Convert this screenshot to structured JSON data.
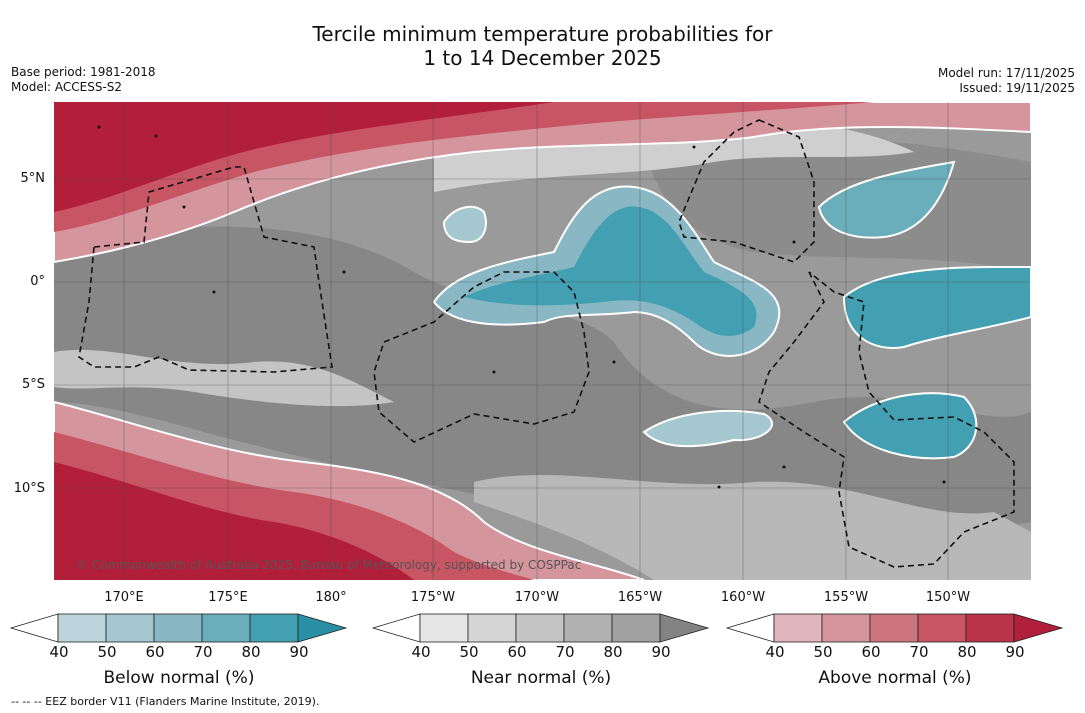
{
  "title": {
    "line1": "Tercile minimum temperature probabilities for",
    "line2": "1 to 14 December 2025"
  },
  "meta": {
    "base_period": "Base period: 1981-2018",
    "model": "Model: ACCESS-S2",
    "model_run": "Model run: 17/11/2025",
    "issued": "Issued: 19/11/2025"
  },
  "map": {
    "lat_labels": [
      "5°N",
      "0°",
      "5°S",
      "10°S"
    ],
    "lon_labels": [
      "170°E",
      "175°E",
      "180°",
      "175°W",
      "170°W",
      "165°W",
      "160°W",
      "155°W",
      "150°W"
    ],
    "credit": "© Commonwealth of Australia 2025, Bureau of Meteorology, supported by COSPPac",
    "colors": {
      "background_near": "#9a9a9a",
      "near_dark": "#878787",
      "near_light": "#cfcfcf",
      "above_70": "#c84f5f",
      "above_90": "#b21f3a",
      "below_70": "#6aaebb",
      "below_90": "#2a8fa5"
    }
  },
  "colorbars": [
    {
      "name": "below-normal",
      "label": "Below normal (%)",
      "ticks": [
        "40",
        "50",
        "60",
        "70",
        "80",
        "90"
      ],
      "colors": [
        "#ffffff",
        "#bcd5dc",
        "#a5c7cf",
        "#89b8c4",
        "#6aaebb",
        "#43a0b2",
        "#2a8fa5"
      ]
    },
    {
      "name": "near-normal",
      "label": "Near normal (%)",
      "ticks": [
        "40",
        "50",
        "60",
        "70",
        "80",
        "90"
      ],
      "colors": [
        "#ffffff",
        "#e6e6e6",
        "#d5d5d5",
        "#c5c5c5",
        "#b1b1b1",
        "#a1a1a1",
        "#838383"
      ]
    },
    {
      "name": "above-normal",
      "label": "Above normal (%)",
      "ticks": [
        "40",
        "50",
        "60",
        "70",
        "80",
        "90"
      ],
      "colors": [
        "#ffffff",
        "#e0b6bc",
        "#d5959d",
        "#cd757f",
        "#c75563",
        "#b93349",
        "#b21f3a"
      ]
    }
  ],
  "eez_note": "-- -- -- EEZ border V11 (Flanders Marine Institute, 2019)."
}
